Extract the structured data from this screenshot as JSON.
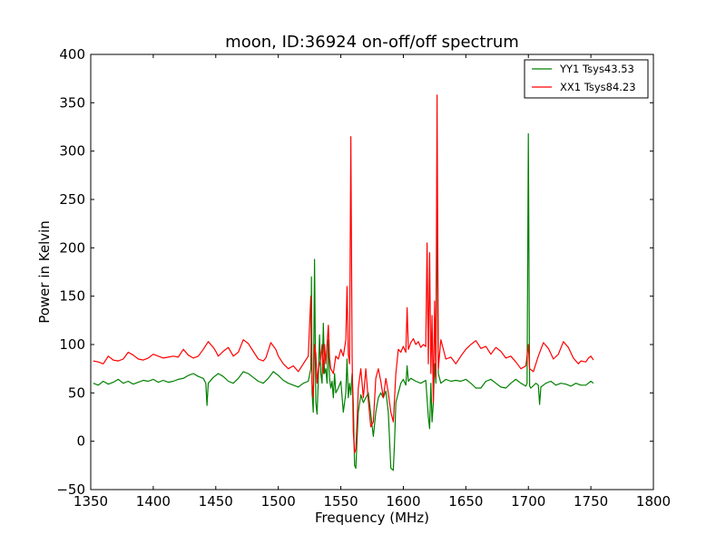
{
  "chart_data": {
    "type": "line",
    "title": "moon, ID:36924 on-off/off spectrum",
    "xlabel": "Frequency (MHz)",
    "ylabel": "Power in Kelvin",
    "xlim": [
      1350,
      1800
    ],
    "ylim": [
      -50,
      400
    ],
    "xticks": [
      1350,
      1400,
      1450,
      1500,
      1550,
      1600,
      1650,
      1700,
      1750,
      1800
    ],
    "yticks": [
      -50,
      0,
      50,
      100,
      150,
      200,
      250,
      300,
      350,
      400
    ],
    "xtick_labels": [
      "1350",
      "1400",
      "1450",
      "1500",
      "1550",
      "1600",
      "1650",
      "1700",
      "1750",
      "1800"
    ],
    "ytick_labels": [
      "−50",
      "0",
      "50",
      "100",
      "150",
      "200",
      "250",
      "300",
      "350",
      "400"
    ],
    "grid": false,
    "legend_position": "top-right",
    "series": [
      {
        "name": "YY1 Tsys43.53",
        "color": "#008000",
        "points": [
          [
            1352,
            60
          ],
          [
            1356,
            58
          ],
          [
            1360,
            62
          ],
          [
            1364,
            59
          ],
          [
            1368,
            61
          ],
          [
            1372,
            64
          ],
          [
            1376,
            60
          ],
          [
            1380,
            62
          ],
          [
            1384,
            59
          ],
          [
            1388,
            61
          ],
          [
            1392,
            63
          ],
          [
            1396,
            62
          ],
          [
            1400,
            64
          ],
          [
            1404,
            61
          ],
          [
            1408,
            63
          ],
          [
            1412,
            61
          ],
          [
            1416,
            62
          ],
          [
            1420,
            64
          ],
          [
            1424,
            65
          ],
          [
            1428,
            68
          ],
          [
            1432,
            70
          ],
          [
            1436,
            67
          ],
          [
            1440,
            65
          ],
          [
            1442,
            60
          ],
          [
            1443,
            37
          ],
          [
            1444,
            60
          ],
          [
            1448,
            66
          ],
          [
            1452,
            70
          ],
          [
            1456,
            67
          ],
          [
            1460,
            62
          ],
          [
            1464,
            60
          ],
          [
            1468,
            65
          ],
          [
            1472,
            72
          ],
          [
            1476,
            70
          ],
          [
            1480,
            66
          ],
          [
            1484,
            62
          ],
          [
            1488,
            60
          ],
          [
            1492,
            65
          ],
          [
            1496,
            72
          ],
          [
            1500,
            68
          ],
          [
            1504,
            63
          ],
          [
            1508,
            60
          ],
          [
            1512,
            58
          ],
          [
            1516,
            56
          ],
          [
            1520,
            60
          ],
          [
            1524,
            62
          ],
          [
            1526,
            75
          ],
          [
            1526.5,
            170
          ],
          [
            1527,
            50
          ],
          [
            1528,
            30
          ],
          [
            1529,
            188
          ],
          [
            1530,
            40
          ],
          [
            1531,
            28
          ],
          [
            1532,
            65
          ],
          [
            1533,
            110
          ],
          [
            1534,
            70
          ],
          [
            1535,
            60
          ],
          [
            1536,
            122
          ],
          [
            1537,
            70
          ],
          [
            1538,
            75
          ],
          [
            1539,
            60
          ],
          [
            1540,
            105
          ],
          [
            1541,
            65
          ],
          [
            1542,
            55
          ],
          [
            1543,
            62
          ],
          [
            1544,
            45
          ],
          [
            1545,
            70
          ],
          [
            1546,
            50
          ],
          [
            1548,
            55
          ],
          [
            1550,
            62
          ],
          [
            1552,
            30
          ],
          [
            1554,
            50
          ],
          [
            1555,
            85
          ],
          [
            1556,
            45
          ],
          [
            1557,
            60
          ],
          [
            1558,
            48
          ],
          [
            1559,
            70
          ],
          [
            1560,
            40
          ],
          [
            1561,
            -25
          ],
          [
            1562,
            -28
          ],
          [
            1564,
            30
          ],
          [
            1566,
            48
          ],
          [
            1568,
            40
          ],
          [
            1570,
            45
          ],
          [
            1572,
            50
          ],
          [
            1574,
            28
          ],
          [
            1576,
            5
          ],
          [
            1578,
            30
          ],
          [
            1580,
            45
          ],
          [
            1582,
            50
          ],
          [
            1584,
            45
          ],
          [
            1586,
            52
          ],
          [
            1588,
            30
          ],
          [
            1590,
            -28
          ],
          [
            1592,
            -30
          ],
          [
            1593,
            0
          ],
          [
            1594,
            40
          ],
          [
            1596,
            50
          ],
          [
            1598,
            60
          ],
          [
            1600,
            64
          ],
          [
            1602,
            58
          ],
          [
            1603,
            78
          ],
          [
            1604,
            62
          ],
          [
            1606,
            65
          ],
          [
            1610,
            62
          ],
          [
            1614,
            60
          ],
          [
            1618,
            63
          ],
          [
            1620,
            25
          ],
          [
            1621,
            13
          ],
          [
            1622,
            60
          ],
          [
            1623,
            20
          ],
          [
            1624,
            40
          ],
          [
            1625,
            80
          ],
          [
            1626,
            60
          ],
          [
            1627,
            255
          ],
          [
            1628,
            70
          ],
          [
            1630,
            60
          ],
          [
            1634,
            64
          ],
          [
            1638,
            62
          ],
          [
            1642,
            63
          ],
          [
            1646,
            62
          ],
          [
            1650,
            64
          ],
          [
            1654,
            60
          ],
          [
            1658,
            55
          ],
          [
            1662,
            55
          ],
          [
            1666,
            62
          ],
          [
            1670,
            64
          ],
          [
            1674,
            60
          ],
          [
            1678,
            56
          ],
          [
            1682,
            55
          ],
          [
            1686,
            60
          ],
          [
            1690,
            64
          ],
          [
            1694,
            60
          ],
          [
            1698,
            57
          ],
          [
            1699,
            60
          ],
          [
            1700,
            318
          ],
          [
            1701,
            57
          ],
          [
            1702,
            55
          ],
          [
            1706,
            60
          ],
          [
            1708,
            58
          ],
          [
            1709,
            38
          ],
          [
            1710,
            56
          ],
          [
            1714,
            60
          ],
          [
            1718,
            62
          ],
          [
            1722,
            58
          ],
          [
            1726,
            60
          ],
          [
            1730,
            59
          ],
          [
            1734,
            57
          ],
          [
            1738,
            60
          ],
          [
            1742,
            58
          ],
          [
            1746,
            58
          ],
          [
            1750,
            62
          ],
          [
            1752,
            60
          ]
        ]
      },
      {
        "name": "XX1 Tsys84.23",
        "color": "#ff0000",
        "points": [
          [
            1352,
            83
          ],
          [
            1356,
            82
          ],
          [
            1360,
            80
          ],
          [
            1364,
            88
          ],
          [
            1368,
            84
          ],
          [
            1372,
            83
          ],
          [
            1376,
            85
          ],
          [
            1380,
            92
          ],
          [
            1384,
            89
          ],
          [
            1388,
            85
          ],
          [
            1392,
            84
          ],
          [
            1396,
            86
          ],
          [
            1400,
            90
          ],
          [
            1404,
            88
          ],
          [
            1408,
            86
          ],
          [
            1412,
            87
          ],
          [
            1416,
            88
          ],
          [
            1420,
            87
          ],
          [
            1424,
            95
          ],
          [
            1428,
            89
          ],
          [
            1432,
            86
          ],
          [
            1436,
            88
          ],
          [
            1440,
            95
          ],
          [
            1444,
            103
          ],
          [
            1448,
            97
          ],
          [
            1450,
            93
          ],
          [
            1452,
            88
          ],
          [
            1456,
            93
          ],
          [
            1460,
            97
          ],
          [
            1464,
            88
          ],
          [
            1468,
            92
          ],
          [
            1472,
            105
          ],
          [
            1476,
            101
          ],
          [
            1480,
            93
          ],
          [
            1484,
            85
          ],
          [
            1488,
            83
          ],
          [
            1490,
            86
          ],
          [
            1494,
            102
          ],
          [
            1498,
            95
          ],
          [
            1500,
            88
          ],
          [
            1504,
            80
          ],
          [
            1508,
            75
          ],
          [
            1512,
            78
          ],
          [
            1516,
            72
          ],
          [
            1520,
            80
          ],
          [
            1524,
            88
          ],
          [
            1526,
            150
          ],
          [
            1527,
            60
          ],
          [
            1528,
            45
          ],
          [
            1529,
            100
          ],
          [
            1530,
            90
          ],
          [
            1531,
            60
          ],
          [
            1532,
            75
          ],
          [
            1534,
            85
          ],
          [
            1535,
            100
          ],
          [
            1536,
            70
          ],
          [
            1537,
            100
          ],
          [
            1538,
            80
          ],
          [
            1540,
            120
          ],
          [
            1541,
            85
          ],
          [
            1542,
            75
          ],
          [
            1544,
            70
          ],
          [
            1546,
            88
          ],
          [
            1548,
            85
          ],
          [
            1550,
            95
          ],
          [
            1552,
            88
          ],
          [
            1554,
            105
          ],
          [
            1555,
            160
          ],
          [
            1556,
            90
          ],
          [
            1557,
            80
          ],
          [
            1558,
            315
          ],
          [
            1559,
            88
          ],
          [
            1560,
            10
          ],
          [
            1561,
            -12
          ],
          [
            1562,
            -8
          ],
          [
            1563,
            20
          ],
          [
            1564,
            55
          ],
          [
            1566,
            75
          ],
          [
            1568,
            45
          ],
          [
            1570,
            75
          ],
          [
            1572,
            42
          ],
          [
            1574,
            15
          ],
          [
            1576,
            20
          ],
          [
            1578,
            65
          ],
          [
            1580,
            75
          ],
          [
            1582,
            62
          ],
          [
            1584,
            45
          ],
          [
            1586,
            65
          ],
          [
            1588,
            50
          ],
          [
            1590,
            30
          ],
          [
            1592,
            20
          ],
          [
            1594,
            70
          ],
          [
            1596,
            95
          ],
          [
            1598,
            92
          ],
          [
            1600,
            98
          ],
          [
            1602,
            92
          ],
          [
            1603,
            138
          ],
          [
            1604,
            95
          ],
          [
            1606,
            102
          ],
          [
            1608,
            106
          ],
          [
            1610,
            100
          ],
          [
            1612,
            103
          ],
          [
            1614,
            97
          ],
          [
            1616,
            100
          ],
          [
            1618,
            98
          ],
          [
            1619,
            205
          ],
          [
            1620,
            80
          ],
          [
            1621,
            195
          ],
          [
            1622,
            70
          ],
          [
            1623,
            130
          ],
          [
            1624,
            40
          ],
          [
            1625,
            145
          ],
          [
            1626,
            65
          ],
          [
            1627,
            358
          ],
          [
            1628,
            75
          ],
          [
            1630,
            105
          ],
          [
            1634,
            85
          ],
          [
            1638,
            87
          ],
          [
            1642,
            80
          ],
          [
            1646,
            88
          ],
          [
            1650,
            95
          ],
          [
            1654,
            100
          ],
          [
            1658,
            104
          ],
          [
            1662,
            96
          ],
          [
            1666,
            98
          ],
          [
            1670,
            90
          ],
          [
            1674,
            97
          ],
          [
            1678,
            93
          ],
          [
            1682,
            86
          ],
          [
            1686,
            88
          ],
          [
            1690,
            82
          ],
          [
            1694,
            75
          ],
          [
            1698,
            78
          ],
          [
            1700,
            100
          ],
          [
            1701,
            75
          ],
          [
            1704,
            72
          ],
          [
            1708,
            88
          ],
          [
            1712,
            102
          ],
          [
            1716,
            96
          ],
          [
            1720,
            85
          ],
          [
            1724,
            90
          ],
          [
            1728,
            103
          ],
          [
            1732,
            97
          ],
          [
            1736,
            86
          ],
          [
            1740,
            80
          ],
          [
            1742,
            83
          ],
          [
            1746,
            82
          ],
          [
            1748,
            86
          ],
          [
            1750,
            88
          ],
          [
            1752,
            84
          ]
        ]
      }
    ]
  }
}
